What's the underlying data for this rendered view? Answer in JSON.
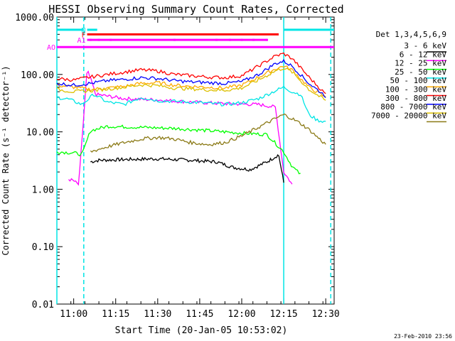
{
  "chart_data": {
    "type": "line",
    "title": "HESSI Observing Summary Count Rates, Corrected",
    "ylabel": "Corrected Count Rate (s⁻¹ detector⁻¹)",
    "xlabel": "Start Time (20-Jan-05 10:53:02)",
    "footer_date": "23-Feb-2010 23:56",
    "yscale": "log",
    "ylim": [
      0.01,
      1000
    ],
    "xlim": [
      10.9,
      12.55
    ],
    "y_ticks": [
      {
        "v": 0.01,
        "label": "0.01"
      },
      {
        "v": 0.1,
        "label": "0.10"
      },
      {
        "v": 1,
        "label": "1.00"
      },
      {
        "v": 10,
        "label": "10.00"
      },
      {
        "v": 100,
        "label": "100.00"
      },
      {
        "v": 1000,
        "label": "1000.00"
      }
    ],
    "x_ticks": [
      {
        "v": 11.0,
        "label": "11:00"
      },
      {
        "v": 11.25,
        "label": "11:15"
      },
      {
        "v": 11.5,
        "label": "11:30"
      },
      {
        "v": 11.75,
        "label": "11:45"
      },
      {
        "v": 12.0,
        "label": "12:00"
      },
      {
        "v": 12.25,
        "label": "12:15"
      },
      {
        "v": 12.5,
        "label": "12:30"
      }
    ],
    "legend_title": "Det 1,3,4,5,6,9",
    "legend_position": "right",
    "series": [
      {
        "name": "3 - 6 keV",
        "color": "#000000",
        "x": [
          11.1,
          11.15,
          11.3,
          11.5,
          11.7,
          11.85,
          11.95,
          12.05,
          12.15,
          12.22,
          12.25
        ],
        "y": [
          3.0,
          3.2,
          3.3,
          3.4,
          3.2,
          3.0,
          2.4,
          2.2,
          3.0,
          4.0,
          1.3
        ]
      },
      {
        "name": "6 - 12 keV",
        "color": "#ff00ff",
        "x": [
          10.97,
          11.0,
          11.03,
          11.08,
          11.09,
          11.11,
          11.13,
          11.2,
          11.3,
          11.5,
          11.7,
          11.9,
          12.1,
          12.2,
          12.25,
          12.28,
          12.3
        ],
        "y": [
          1.5,
          1.4,
          1.2,
          120,
          100,
          70,
          45,
          42,
          38,
          36,
          33,
          31,
          30,
          27,
          2.0,
          1.5,
          1.2
        ]
      },
      {
        "name": "12 - 25 keV",
        "color": "#00ff00",
        "x": [
          10.9,
          11.0,
          11.05,
          11.1,
          11.2,
          11.4,
          11.6,
          11.8,
          12.0,
          12.15,
          12.25,
          12.3,
          12.35
        ],
        "y": [
          4.5,
          4.3,
          4.0,
          10.5,
          12.5,
          12.0,
          11.5,
          10.5,
          9.5,
          9.0,
          4.5,
          2.5,
          1.8
        ]
      },
      {
        "name": "25 - 50 keV",
        "color": "#00e5e5",
        "x": [
          10.9,
          10.97,
          11.05,
          11.12,
          11.2,
          11.3,
          11.4,
          11.5,
          11.7,
          11.9,
          12.0,
          12.1,
          12.2,
          12.25,
          12.3,
          12.35,
          12.4,
          12.45,
          12.5
        ],
        "y": [
          40,
          37,
          30,
          45,
          33,
          30,
          40,
          35,
          33,
          30,
          32,
          38,
          52,
          60,
          50,
          45,
          20,
          16,
          15
        ]
      },
      {
        "name": "50 - 100 keV",
        "color": "#ffaa00",
        "x": [
          10.9,
          11.0,
          11.1,
          11.2,
          11.3,
          11.4,
          11.5,
          11.6,
          11.7,
          11.8,
          11.9,
          12.0,
          12.1,
          12.2,
          12.25,
          12.3,
          12.4,
          12.5
        ],
        "y": [
          65,
          60,
          55,
          58,
          62,
          70,
          72,
          65,
          62,
          60,
          58,
          65,
          90,
          125,
          140,
          120,
          60,
          40
        ]
      },
      {
        "name": "100 - 300 keV",
        "color": "#ff0000",
        "x": [
          10.9,
          11.0,
          11.1,
          11.2,
          11.3,
          11.4,
          11.5,
          11.6,
          11.7,
          11.8,
          11.9,
          12.0,
          12.1,
          12.2,
          12.25,
          12.3,
          12.4,
          12.5
        ],
        "y": [
          85,
          80,
          90,
          100,
          110,
          120,
          115,
          100,
          95,
          90,
          88,
          95,
          140,
          210,
          230,
          190,
          90,
          45
        ]
      },
      {
        "name": "300 - 800 keV",
        "color": "#0000ff",
        "x": [
          10.9,
          11.0,
          11.1,
          11.2,
          11.3,
          11.4,
          11.5,
          11.6,
          11.7,
          11.8,
          11.9,
          12.0,
          12.1,
          12.2,
          12.25,
          12.3,
          12.4,
          12.5
        ],
        "y": [
          70,
          65,
          70,
          78,
          82,
          88,
          85,
          78,
          74,
          72,
          70,
          75,
          100,
          155,
          170,
          140,
          70,
          42
        ]
      },
      {
        "name": "800 - 7000 keV",
        "color": "#ddc000",
        "x": [
          10.9,
          11.0,
          11.1,
          11.2,
          11.3,
          11.4,
          11.5,
          11.6,
          11.7,
          11.8,
          11.9,
          12.0,
          12.1,
          12.2,
          12.25,
          12.3,
          12.4,
          12.5
        ],
        "y": [
          55,
          50,
          52,
          56,
          60,
          66,
          64,
          58,
          56,
          54,
          53,
          58,
          80,
          115,
          130,
          110,
          55,
          35
        ]
      },
      {
        "name": "7000 - 20000 keV",
        "color": "#8b7a16",
        "x": [
          11.1,
          11.2,
          11.3,
          11.4,
          11.5,
          11.6,
          11.7,
          11.8,
          11.9,
          12.0,
          12.1,
          12.2,
          12.25,
          12.3,
          12.35,
          12.4,
          12.5
        ],
        "y": [
          4.5,
          5.5,
          6.5,
          7.5,
          8.0,
          7.5,
          6.5,
          6.0,
          6.5,
          8.5,
          12.0,
          17.0,
          20.0,
          17.0,
          14.0,
          11.0,
          6.0
        ]
      }
    ],
    "flag_bars": [
      {
        "label": "F",
        "color": "#ff0000",
        "level": 500,
        "x_start": 11.08,
        "x_end": 12.22,
        "dots": []
      },
      {
        "label": "N",
        "color": "#00e5e5",
        "level": 600,
        "x_start": 11.08,
        "x_end": 11.14,
        "dots": []
      },
      {
        "label": "",
        "color": "#00e5e5",
        "level": 600,
        "x_start": 10.9,
        "x_end": 11.06,
        "dots": []
      },
      {
        "label": "",
        "color": "#00e5e5",
        "level": 600,
        "x_start": 12.25,
        "x_end": 12.55,
        "dots": []
      },
      {
        "label": "AO",
        "color": "#ff00ff",
        "level": 300,
        "x_start": 10.9,
        "x_end": 12.55,
        "dots": []
      },
      {
        "label": "A1",
        "color": "#ff00ff",
        "level": 400,
        "x_start": 11.08,
        "x_end": 12.15,
        "dots": [
          11.1,
          11.15,
          11.22,
          11.6,
          11.85,
          11.93,
          12.0,
          12.07,
          12.15
        ]
      }
    ],
    "vertical_markers": [
      {
        "x": 10.9,
        "color": "#00e5e5",
        "style": "solid"
      },
      {
        "x": 11.06,
        "color": "#00e5e5",
        "style": "dashed"
      },
      {
        "x": 12.25,
        "color": "#00e5e5",
        "style": "solid"
      },
      {
        "x": 12.53,
        "color": "#00e5e5",
        "style": "dashed"
      }
    ]
  }
}
